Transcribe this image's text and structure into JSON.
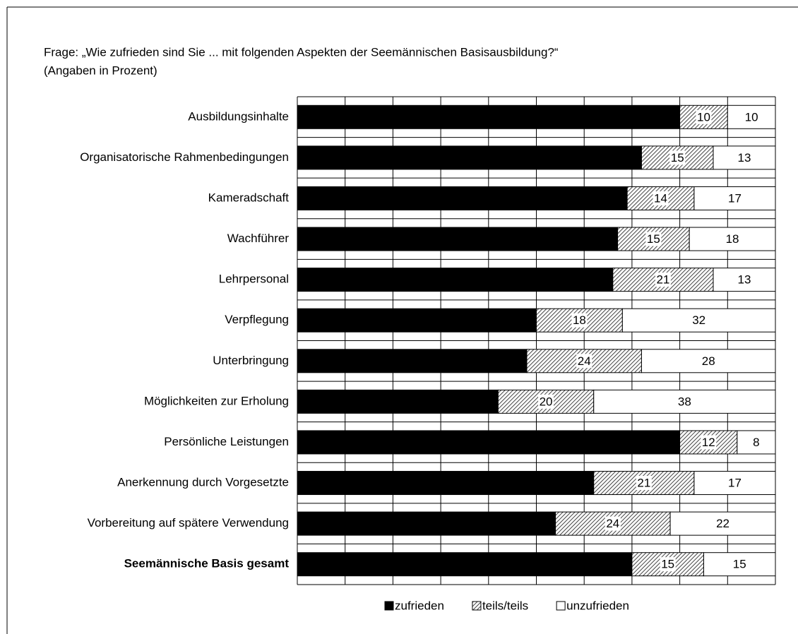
{
  "chart_data": {
    "type": "stacked-bar-horizontal",
    "title": "Frage: „Wie zufrieden sind Sie ... mit folgenden Aspekten der Seemännischen Basisausbildung?“",
    "subtitle": "(Angaben in Prozent)",
    "categories": [
      "Ausbildungsinhalte",
      "Organisatorische Rahmenbedingungen",
      "Kameradschaft",
      "Wachführer",
      "Lehrpersonal",
      "Verpflegung",
      "Unterbringung",
      "Möglichkeiten zur Erholung",
      "Persönliche Leistungen",
      "Anerkennung durch Vorgesetzte",
      "Vorbereitung auf spätere Verwendung",
      "Seemännische Basis gesamt"
    ],
    "series": [
      {
        "name": "zufrieden",
        "color": "#000000",
        "values": [
          80,
          72,
          69,
          67,
          66,
          50,
          48,
          42,
          80,
          62,
          54,
          70
        ]
      },
      {
        "name": "teils/teils",
        "color": "#b0b0b0",
        "pattern": "hatch",
        "values": [
          10,
          15,
          14,
          15,
          21,
          18,
          24,
          20,
          12,
          21,
          24,
          15
        ]
      },
      {
        "name": "unzufrieden",
        "color": "#ffffff",
        "values": [
          10,
          13,
          17,
          18,
          13,
          32,
          28,
          38,
          8,
          17,
          22,
          15
        ]
      }
    ],
    "xlim": [
      0,
      100
    ],
    "xticks": [
      0,
      10,
      20,
      30,
      40,
      50,
      60,
      70,
      80,
      90,
      100
    ],
    "grid": true,
    "legend": "bottom"
  }
}
